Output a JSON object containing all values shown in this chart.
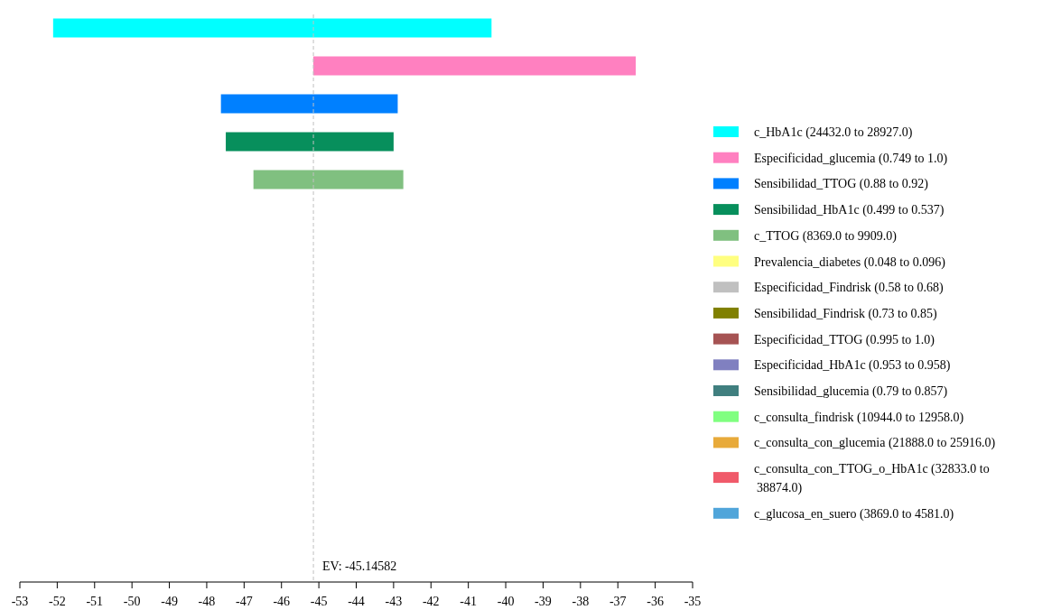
{
  "chart_data": {
    "type": "bar",
    "orientation": "horizontal",
    "categories": [
      null,
      null,
      null,
      null,
      null,
      null,
      null,
      null,
      null,
      null,
      null,
      null,
      null,
      null,
      null
    ],
    "series": [
      {
        "name": "c_HbA1c (24432.0 to 28927.0)",
        "color": "#00ffff",
        "base": [
          -52.11,
          null,
          null,
          null,
          null,
          null,
          null,
          null,
          null,
          null,
          null,
          null,
          null,
          null,
          null
        ],
        "values": [
          11.73,
          null,
          null,
          null,
          null,
          null,
          null,
          null,
          null,
          null,
          null,
          null,
          null,
          null,
          null
        ]
      },
      {
        "name": "Especificidad_glucemia (0.749 to 1.0)",
        "color": "#ff80c0",
        "base": [
          null,
          -45.15,
          null,
          null,
          null,
          null,
          null,
          null,
          null,
          null,
          null,
          null,
          null,
          null,
          null
        ],
        "values": [
          null,
          8.63,
          null,
          null,
          null,
          null,
          null,
          null,
          null,
          null,
          null,
          null,
          null,
          null,
          null
        ]
      },
      {
        "name": "Sensibilidad_TTOG (0.88 to 0.92)",
        "color": "#0080ff",
        "base": [
          null,
          null,
          -47.62,
          null,
          null,
          null,
          null,
          null,
          null,
          null,
          null,
          null,
          null,
          null,
          null
        ],
        "values": [
          null,
          null,
          4.73,
          null,
          null,
          null,
          null,
          null,
          null,
          null,
          null,
          null,
          null,
          null,
          null
        ]
      },
      {
        "name": "Sensibilidad_HbA1c (0.499 to 0.537)",
        "color": "#078f5c",
        "base": [
          null,
          null,
          null,
          -47.49,
          null,
          null,
          null,
          null,
          null,
          null,
          null,
          null,
          null,
          null,
          null
        ],
        "values": [
          null,
          null,
          null,
          4.49,
          null,
          null,
          null,
          null,
          null,
          null,
          null,
          null,
          null,
          null,
          null
        ]
      },
      {
        "name": "c_TTOG (8369.0 to 9909.0)",
        "color": "#80c080",
        "base": [
          null,
          null,
          null,
          null,
          -46.75,
          null,
          null,
          null,
          null,
          null,
          null,
          null,
          null,
          null,
          null
        ],
        "values": [
          null,
          null,
          null,
          null,
          4.01,
          null,
          null,
          null,
          null,
          null,
          null,
          null,
          null,
          null,
          null
        ]
      },
      {
        "name": "Prevalencia_diabetes (0.048 to 0.096)",
        "color": "#ffff80",
        "values": [
          null,
          null,
          null,
          null,
          null,
          null,
          null,
          null,
          null,
          null,
          null,
          null,
          null,
          null,
          null
        ]
      },
      {
        "name": "Especificidad_Findrisk (0.58 to 0.68)",
        "color": "#c0c0c0",
        "values": [
          null,
          null,
          null,
          null,
          null,
          null,
          null,
          null,
          null,
          null,
          null,
          null,
          null,
          null,
          null
        ]
      },
      {
        "name": "Sensibilidad_Findrisk (0.73 to 0.85)",
        "color": "#808000",
        "values": [
          null,
          null,
          null,
          null,
          null,
          null,
          null,
          null,
          null,
          null,
          null,
          null,
          null,
          null,
          null
        ]
      },
      {
        "name": "Especificidad_TTOG (0.995 to 1.0)",
        "color": "#a65353",
        "values": [
          null,
          null,
          null,
          null,
          null,
          null,
          null,
          null,
          null,
          null,
          null,
          null,
          null,
          null,
          null
        ]
      },
      {
        "name": "Especificidad_HbA1c (0.953 to 0.958)",
        "color": "#8080c0",
        "values": [
          null,
          null,
          null,
          null,
          null,
          null,
          null,
          null,
          null,
          null,
          null,
          null,
          null,
          null,
          null
        ]
      },
      {
        "name": "Sensibilidad_glucemia (0.79 to 0.857)",
        "color": "#407f7f",
        "values": [
          null,
          null,
          null,
          null,
          null,
          null,
          null,
          null,
          null,
          null,
          null,
          null,
          null,
          null,
          null
        ]
      },
      {
        "name": "c_consulta_findrisk (10944.0 to 12958.0)",
        "color": "#80ff80",
        "values": [
          null,
          null,
          null,
          null,
          null,
          null,
          null,
          null,
          null,
          null,
          null,
          null,
          null,
          null,
          null
        ]
      },
      {
        "name": "c_consulta_con_glucemia (21888.0 to 25916.0)",
        "color": "#e8aa3a",
        "values": [
          null,
          null,
          null,
          null,
          null,
          null,
          null,
          null,
          null,
          null,
          null,
          null,
          null,
          null,
          null
        ]
      },
      {
        "name": "c_consulta_con_TTOG_o_HbA1c (32833.0 to 38874.0)",
        "color": "#f05a6a",
        "values": [
          null,
          null,
          null,
          null,
          null,
          null,
          null,
          null,
          null,
          null,
          null,
          null,
          null,
          null,
          null
        ]
      },
      {
        "name": "c_glucosa_en_suero (3869.0 to 4581.0)",
        "color": "#50a5da",
        "values": [
          null,
          null,
          null,
          null,
          null,
          null,
          null,
          null,
          null,
          null,
          null,
          null,
          null,
          null,
          null
        ]
      }
    ],
    "xlim": [
      -53,
      -35
    ],
    "xticks": [
      -53,
      -52,
      -51,
      -50,
      -49,
      -48,
      -47,
      -46,
      -45,
      -44,
      -43,
      -42,
      -41,
      -40,
      -39,
      -38,
      -37,
      -36,
      -35
    ],
    "ref_lines": [
      {
        "axis": "x",
        "value": -45.14582,
        "label": "EV: -45.14582",
        "color": "#c0c0c0",
        "line_style": "dashed"
      }
    ],
    "legend": "right",
    "tick_labels": "x",
    "grid": false
  }
}
